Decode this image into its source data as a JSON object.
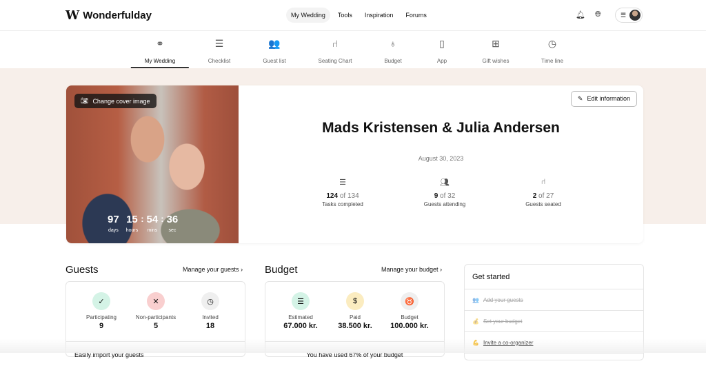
{
  "header": {
    "logo_mark": "W",
    "brand": "Wonderfulday",
    "nav": [
      "My Wedding",
      "Tools",
      "Inspiration",
      "Forums"
    ],
    "menu_icon": "hamburger-icon"
  },
  "subnav": [
    {
      "label": "My Wedding",
      "icon": "rings-icon",
      "glyph": "⚭"
    },
    {
      "label": "Checklist",
      "icon": "checklist-icon",
      "glyph": "☰"
    },
    {
      "label": "Guest list",
      "icon": "guests-icon",
      "glyph": "👥"
    },
    {
      "label": "Seating Chart",
      "icon": "chair-icon",
      "glyph": "⑁"
    },
    {
      "label": "Budget",
      "icon": "money-bag-icon",
      "glyph": "♁"
    },
    {
      "label": "App",
      "icon": "phone-icon",
      "glyph": "▯"
    },
    {
      "label": "Gift wishes",
      "icon": "gift-icon",
      "glyph": "⊞"
    },
    {
      "label": "Time line",
      "icon": "clock-icon",
      "glyph": "◷"
    }
  ],
  "hero": {
    "cover_button": "Change cover image",
    "edit_button": "Edit information",
    "title": "Mads Kristensen & Julia Andersen",
    "date": "August 30, 2023",
    "countdown": [
      {
        "n": "97",
        "l": "days"
      },
      {
        "n": "15",
        "l": "hours"
      },
      {
        "n": "54",
        "l": "mins"
      },
      {
        "n": "36",
        "l": "sec"
      }
    ],
    "stats": [
      {
        "value": "124",
        "of": "of 134",
        "label": "Tasks completed"
      },
      {
        "value": "9",
        "of": "of 32",
        "label": "Guests attending"
      },
      {
        "value": "2",
        "of": "of 27",
        "label": "Guests seated"
      }
    ]
  },
  "guests": {
    "title": "Guests",
    "link": "Manage your guests",
    "kpis": [
      {
        "label": "Participating",
        "value": "9",
        "color": "#d4f3e6"
      },
      {
        "label": "Non-participants",
        "value": "5",
        "color": "#f9cfcf"
      },
      {
        "label": "Invited",
        "value": "18",
        "color": "#efefef"
      }
    ],
    "footer": "Easily import your guests"
  },
  "budget": {
    "title": "Budget",
    "link": "Manage your budget",
    "kpis": [
      {
        "label": "Estimated",
        "value": "67.000 kr.",
        "color": "#d4f3e6"
      },
      {
        "label": "Paid",
        "value": "38.500 kr.",
        "color": "#fbecc0"
      },
      {
        "label": "Budget",
        "value": "100.000 kr.",
        "color": "#efefef"
      }
    ],
    "footer": "You have used 67% of your budget"
  },
  "get_started": {
    "title": "Get started",
    "items": [
      {
        "label": "Add your guests",
        "emoji": "👥",
        "done": true
      },
      {
        "label": "Set your budget",
        "emoji": "💰",
        "done": true
      },
      {
        "label": "Invite a co-organizer",
        "emoji": "💪",
        "done": false
      }
    ]
  }
}
